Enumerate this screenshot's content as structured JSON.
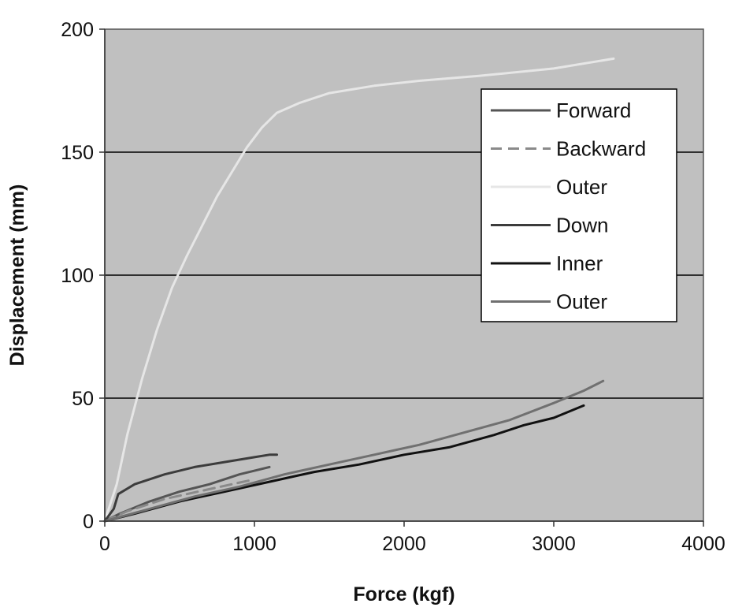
{
  "chart_data": {
    "type": "line",
    "title": "",
    "xlabel": "Force (kgf)",
    "ylabel": "Displacement (mm)",
    "xlim": [
      0,
      4000
    ],
    "ylim": [
      0,
      200
    ],
    "x_ticks": [
      "0",
      "1000",
      "2000",
      "3000",
      "4000"
    ],
    "y_ticks": [
      "0",
      "50",
      "100",
      "150",
      "200"
    ],
    "grid": "horizontal",
    "plot_background": "#c0c0c0",
    "legend_position": "top-right",
    "series": [
      {
        "name": "Forward",
        "color": "#555555",
        "dash": "solid",
        "points": [
          [
            0,
            0
          ],
          [
            100,
            3
          ],
          [
            300,
            8
          ],
          [
            500,
            12
          ],
          [
            700,
            15
          ],
          [
            900,
            19
          ],
          [
            1100,
            22
          ]
        ]
      },
      {
        "name": "Backward",
        "color": "#8a8a8a",
        "dash": "dashed",
        "points": [
          [
            0,
            0
          ],
          [
            150,
            4
          ],
          [
            400,
            9
          ],
          [
            700,
            13
          ],
          [
            1000,
            17
          ]
        ]
      },
      {
        "name": "Outer",
        "color": "#e6e6e6",
        "dash": "solid",
        "points": [
          [
            0,
            0
          ],
          [
            80,
            15
          ],
          [
            150,
            35
          ],
          [
            250,
            58
          ],
          [
            350,
            78
          ],
          [
            450,
            95
          ],
          [
            550,
            108
          ],
          [
            650,
            120
          ],
          [
            750,
            132
          ],
          [
            850,
            142
          ],
          [
            950,
            152
          ],
          [
            1050,
            160
          ],
          [
            1150,
            166
          ],
          [
            1300,
            170
          ],
          [
            1500,
            174
          ],
          [
            1800,
            177
          ],
          [
            2100,
            179
          ],
          [
            2500,
            181
          ],
          [
            3000,
            184
          ],
          [
            3400,
            188
          ]
        ]
      },
      {
        "name": "Down",
        "color": "#3c3c3c",
        "dash": "solid",
        "points": [
          [
            0,
            0
          ],
          [
            60,
            5
          ],
          [
            90,
            11
          ],
          [
            200,
            15
          ],
          [
            400,
            19
          ],
          [
            600,
            22
          ],
          [
            800,
            24
          ],
          [
            1000,
            26
          ],
          [
            1100,
            27
          ],
          [
            1150,
            27
          ]
        ]
      },
      {
        "name": "Inner",
        "color": "#111111",
        "dash": "solid",
        "points": [
          [
            0,
            0
          ],
          [
            200,
            3
          ],
          [
            500,
            8
          ],
          [
            800,
            12
          ],
          [
            1100,
            16
          ],
          [
            1400,
            20
          ],
          [
            1700,
            23
          ],
          [
            2000,
            27
          ],
          [
            2300,
            30
          ],
          [
            2600,
            35
          ],
          [
            2800,
            39
          ],
          [
            3000,
            42
          ],
          [
            3200,
            47
          ]
        ]
      },
      {
        "name": "Outer",
        "color": "#707070",
        "dash": "solid",
        "points": [
          [
            0,
            0
          ],
          [
            300,
            5
          ],
          [
            600,
            10
          ],
          [
            900,
            14
          ],
          [
            1200,
            19
          ],
          [
            1500,
            23
          ],
          [
            1800,
            27
          ],
          [
            2100,
            31
          ],
          [
            2400,
            36
          ],
          [
            2700,
            41
          ],
          [
            3000,
            48
          ],
          [
            3200,
            53
          ],
          [
            3330,
            57
          ]
        ]
      }
    ]
  }
}
